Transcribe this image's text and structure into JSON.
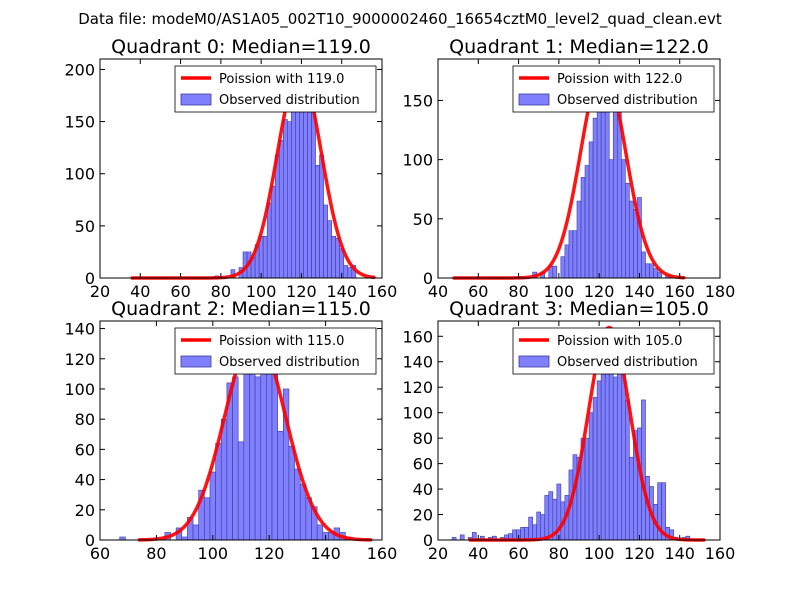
{
  "title": "Data file: modeM0/AS1A05_002T10_9000002460_16654cztM0_level2_quad_clean.evt",
  "colors": {
    "bar_fill": "#8080ff",
    "bar_edge": "#3a3aa0",
    "curve": "#ff0000",
    "axis": "#000000"
  },
  "chart_data": [
    {
      "type": "bar",
      "title": "Quadrant 0: Median=119.0",
      "legend": [
        "Poission with 119.0",
        "Observed distribution"
      ],
      "legend_location": "top-right",
      "xlim": [
        20,
        160
      ],
      "ylim": [
        0,
        210
      ],
      "xticks": [
        20,
        40,
        60,
        80,
        100,
        120,
        140,
        160
      ],
      "yticks": [
        0,
        50,
        100,
        150,
        200
      ],
      "bins": [
        [
          77,
          79,
          2
        ],
        [
          85,
          87,
          8
        ],
        [
          89,
          91,
          10
        ],
        [
          91,
          93,
          25
        ],
        [
          93,
          95,
          25
        ],
        [
          95,
          97,
          20
        ],
        [
          97,
          99,
          32
        ],
        [
          99,
          101,
          40
        ],
        [
          101,
          103,
          40
        ],
        [
          103,
          105,
          72
        ],
        [
          105,
          107,
          88
        ],
        [
          107,
          109,
          118
        ],
        [
          109,
          111,
          132
        ],
        [
          111,
          113,
          152
        ],
        [
          113,
          115,
          150
        ],
        [
          115,
          117,
          175
        ],
        [
          117,
          119,
          200
        ],
        [
          119,
          121,
          162
        ],
        [
          121,
          123,
          198
        ],
        [
          123,
          125,
          162
        ],
        [
          125,
          127,
          168
        ],
        [
          127,
          129,
          108
        ],
        [
          129,
          131,
          118
        ],
        [
          131,
          133,
          70
        ],
        [
          133,
          135,
          55
        ],
        [
          135,
          137,
          40
        ],
        [
          137,
          139,
          38
        ],
        [
          139,
          141,
          28
        ],
        [
          141,
          143,
          12
        ],
        [
          143,
          145,
          10
        ],
        [
          145,
          147,
          12
        ]
      ],
      "poisson_mean": 119.0,
      "poisson_peak": 198,
      "poisson_sigma": 10.9,
      "poisson_range": [
        36,
        156
      ]
    },
    {
      "type": "bar",
      "title": "Quadrant 1: Median=122.0",
      "legend": [
        "Poission with 122.0",
        "Observed distribution"
      ],
      "legend_location": "top-right",
      "xlim": [
        40,
        180
      ],
      "ylim": [
        0,
        185
      ],
      "xticks": [
        40,
        60,
        80,
        100,
        120,
        140,
        160,
        180
      ],
      "yticks": [
        0,
        50,
        100,
        150
      ],
      "bins": [
        [
          87,
          89,
          5
        ],
        [
          91,
          93,
          5
        ],
        [
          95,
          97,
          10
        ],
        [
          97,
          99,
          10
        ],
        [
          101,
          103,
          18
        ],
        [
          103,
          105,
          28
        ],
        [
          105,
          107,
          40
        ],
        [
          107,
          109,
          40
        ],
        [
          109,
          111,
          65
        ],
        [
          111,
          113,
          85
        ],
        [
          113,
          115,
          95
        ],
        [
          115,
          117,
          115
        ],
        [
          117,
          119,
          135
        ],
        [
          119,
          121,
          160
        ],
        [
          121,
          123,
          140
        ],
        [
          123,
          125,
          148
        ],
        [
          125,
          127,
          100
        ],
        [
          127,
          129,
          150
        ],
        [
          129,
          131,
          145
        ],
        [
          131,
          133,
          100
        ],
        [
          133,
          135,
          80
        ],
        [
          135,
          137,
          65
        ],
        [
          137,
          139,
          58
        ],
        [
          139,
          141,
          68
        ],
        [
          141,
          143,
          22
        ],
        [
          143,
          145,
          12
        ],
        [
          145,
          147,
          12
        ],
        [
          147,
          149,
          8
        ],
        [
          149,
          151,
          5
        ],
        [
          153,
          155,
          2
        ]
      ],
      "poisson_mean": 122.0,
      "poisson_peak": 178,
      "poisson_sigma": 11.05,
      "poisson_range": [
        48,
        162
      ]
    },
    {
      "type": "bar",
      "title": "Quadrant 2: Median=115.0",
      "legend": [
        "Poission with 115.0",
        "Observed distribution"
      ],
      "legend_location": "top-right",
      "xlim": [
        60,
        160
      ],
      "ylim": [
        0,
        145
      ],
      "xticks": [
        60,
        80,
        100,
        120,
        140,
        160
      ],
      "yticks": [
        0,
        20,
        40,
        60,
        80,
        100,
        120,
        140
      ],
      "bins": [
        [
          67,
          69,
          2
        ],
        [
          83,
          85,
          5
        ],
        [
          87,
          89,
          8
        ],
        [
          89,
          91,
          2
        ],
        [
          91,
          93,
          15
        ],
        [
          93,
          95,
          10
        ],
        [
          95,
          97,
          33
        ],
        [
          97,
          99,
          28
        ],
        [
          99,
          101,
          45
        ],
        [
          101,
          103,
          64
        ],
        [
          103,
          105,
          80
        ],
        [
          105,
          107,
          104
        ],
        [
          107,
          109,
          108
        ],
        [
          109,
          111,
          65
        ],
        [
          111,
          113,
          140
        ],
        [
          113,
          115,
          136
        ],
        [
          115,
          117,
          108
        ],
        [
          117,
          119,
          127
        ],
        [
          119,
          121,
          121
        ],
        [
          121,
          123,
          111
        ],
        [
          123,
          125,
          72
        ],
        [
          125,
          127,
          100
        ],
        [
          127,
          129,
          62
        ],
        [
          129,
          131,
          47
        ],
        [
          131,
          133,
          37
        ],
        [
          133,
          135,
          28
        ],
        [
          135,
          137,
          22
        ],
        [
          137,
          139,
          10
        ],
        [
          139,
          141,
          5
        ],
        [
          141,
          143,
          5
        ],
        [
          143,
          145,
          8
        ],
        [
          145,
          147,
          5
        ],
        [
          147,
          149,
          2
        ]
      ],
      "poisson_mean": 115.0,
      "poisson_peak": 136,
      "poisson_sigma": 10.72,
      "poisson_range": [
        74,
        156
      ]
    },
    {
      "type": "bar",
      "title": "Quadrant 3: Median=105.0",
      "legend": [
        "Poission with 105.0",
        "Observed distribution"
      ],
      "legend_location": "top-right",
      "xlim": [
        20,
        160
      ],
      "ylim": [
        0,
        172
      ],
      "xticks": [
        20,
        40,
        60,
        80,
        100,
        120,
        140,
        160
      ],
      "yticks": [
        0,
        20,
        40,
        60,
        80,
        100,
        120,
        140,
        160
      ],
      "bins": [
        [
          27,
          29,
          2
        ],
        [
          31,
          33,
          4
        ],
        [
          35,
          37,
          2
        ],
        [
          37,
          39,
          6
        ],
        [
          41,
          43,
          3
        ],
        [
          45,
          47,
          2
        ],
        [
          47,
          49,
          3
        ],
        [
          51,
          53,
          2
        ],
        [
          53,
          55,
          4
        ],
        [
          55,
          57,
          5
        ],
        [
          57,
          59,
          8
        ],
        [
          59,
          61,
          8
        ],
        [
          61,
          63,
          10
        ],
        [
          63,
          65,
          10
        ],
        [
          65,
          67,
          18
        ],
        [
          67,
          69,
          12
        ],
        [
          69,
          71,
          22
        ],
        [
          71,
          73,
          20
        ],
        [
          73,
          75,
          35
        ],
        [
          75,
          77,
          38
        ],
        [
          77,
          79,
          32
        ],
        [
          79,
          81,
          44
        ],
        [
          81,
          83,
          30
        ],
        [
          83,
          85,
          35
        ],
        [
          85,
          87,
          55
        ],
        [
          87,
          89,
          67
        ],
        [
          89,
          91,
          65
        ],
        [
          91,
          93,
          80
        ],
        [
          93,
          95,
          80
        ],
        [
          95,
          97,
          100
        ],
        [
          97,
          99,
          112
        ],
        [
          99,
          101,
          125
        ],
        [
          101,
          103,
          158
        ],
        [
          103,
          105,
          154
        ],
        [
          105,
          107,
          159
        ],
        [
          107,
          109,
          128
        ],
        [
          109,
          111,
          148
        ],
        [
          111,
          113,
          160
        ],
        [
          113,
          115,
          110
        ],
        [
          115,
          117,
          65
        ],
        [
          117,
          119,
          86
        ],
        [
          119,
          121,
          88
        ],
        [
          121,
          123,
          110
        ],
        [
          123,
          125,
          50
        ],
        [
          125,
          127,
          42
        ],
        [
          127,
          129,
          28
        ],
        [
          129,
          131,
          45
        ],
        [
          131,
          133,
          45
        ],
        [
          133,
          135,
          10
        ],
        [
          135,
          137,
          8
        ],
        [
          137,
          139,
          2
        ],
        [
          141,
          143,
          2
        ],
        [
          143,
          145,
          3
        ]
      ],
      "poisson_mean": 105.0,
      "poisson_peak": 167,
      "poisson_sigma": 10.25,
      "poisson_range": [
        36,
        152
      ]
    }
  ]
}
